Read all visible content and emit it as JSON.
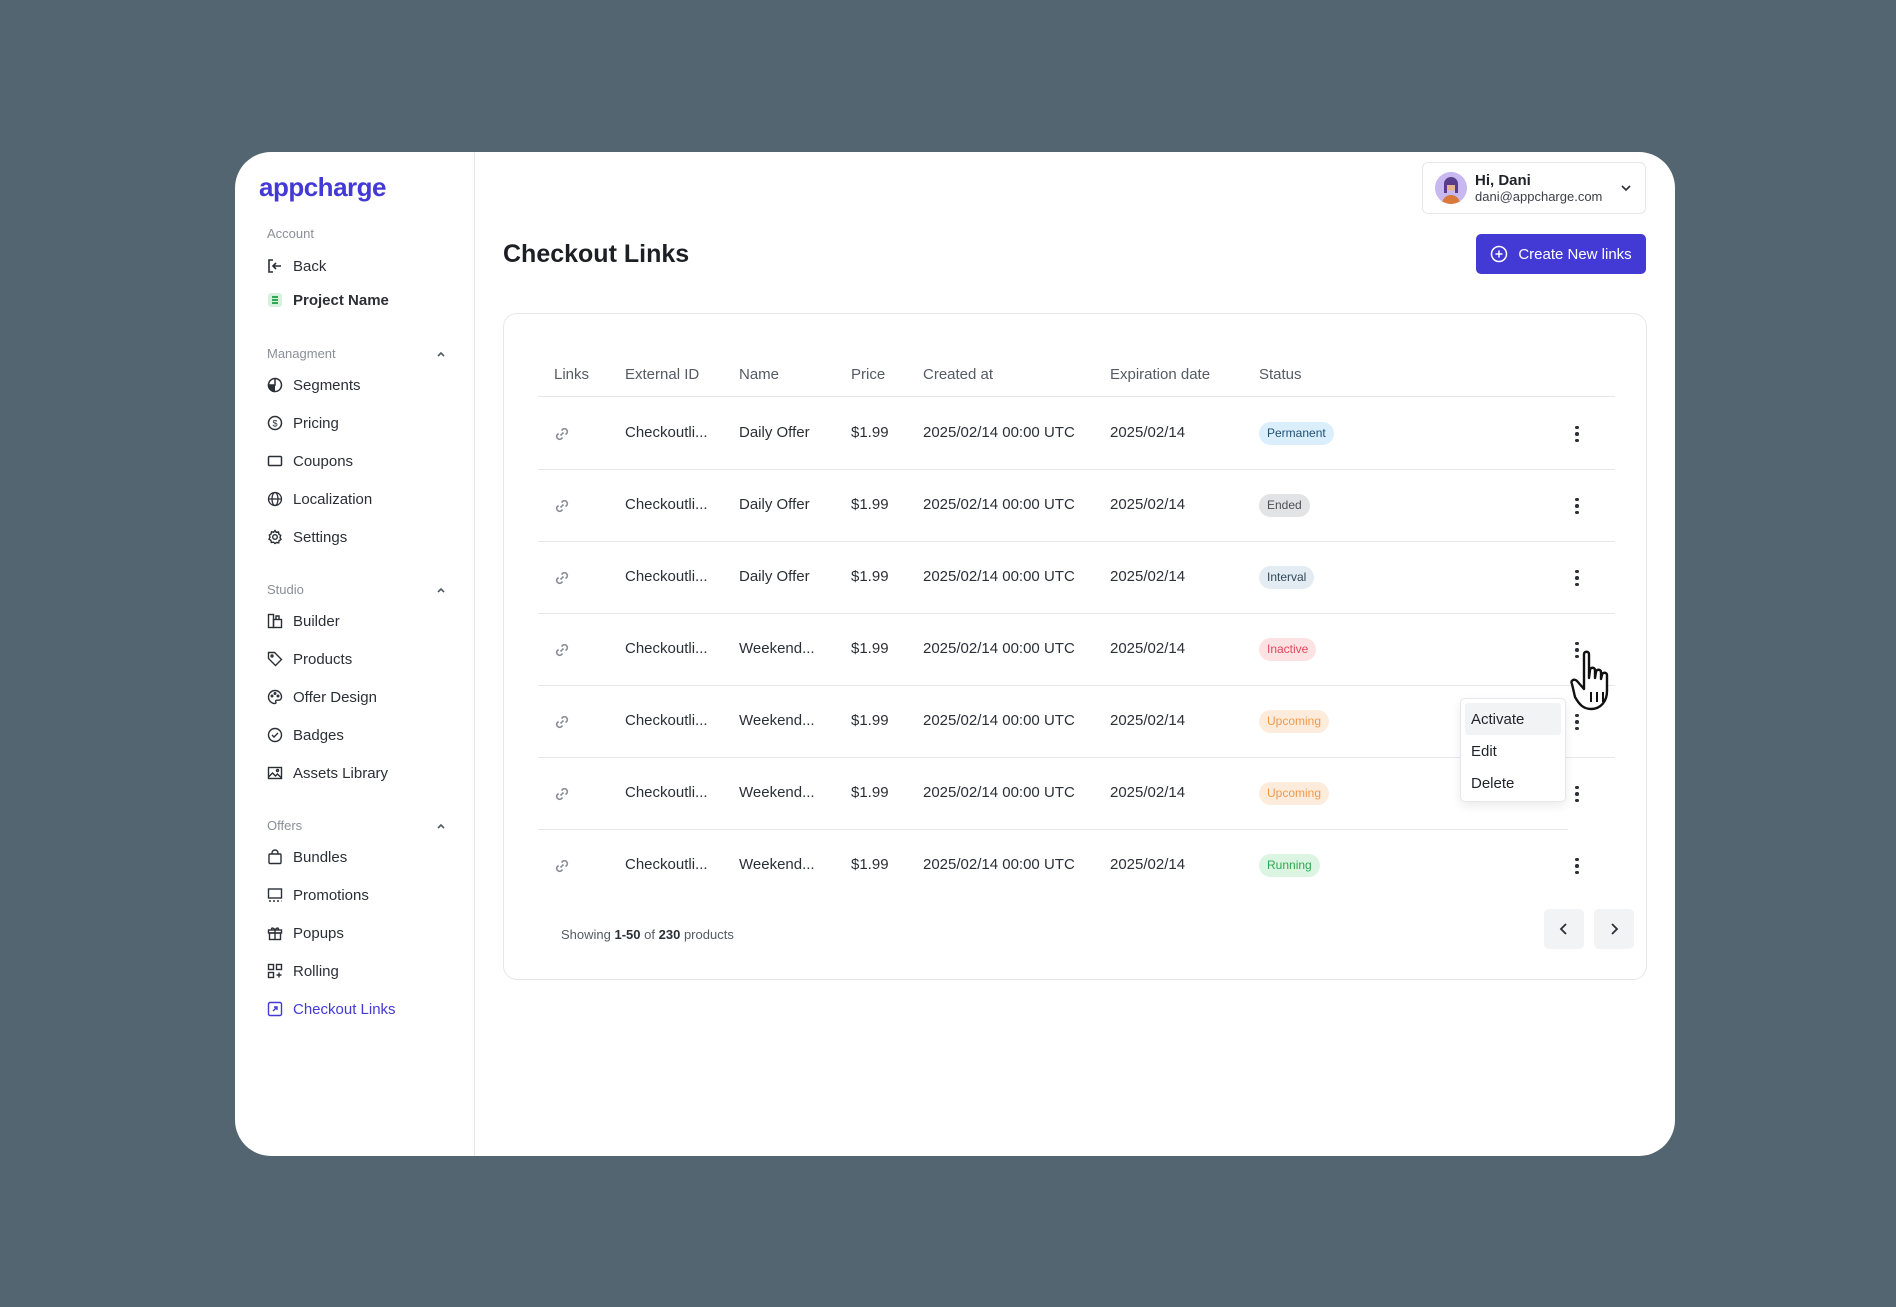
{
  "brand": {
    "logo": "appcharge",
    "accent": "#4339d4"
  },
  "sidebar": {
    "account_label": "Account",
    "account_items": [
      {
        "label": "Back",
        "icon": "back-icon"
      },
      {
        "label": "Project Name",
        "icon": "project-icon"
      }
    ],
    "management_label": "Managment",
    "management_items": [
      {
        "label": "Segments",
        "icon": "segments-icon"
      },
      {
        "label": "Pricing",
        "icon": "pricing-icon"
      },
      {
        "label": "Coupons",
        "icon": "coupons-icon"
      },
      {
        "label": "Localization",
        "icon": "globe-icon"
      },
      {
        "label": "Settings",
        "icon": "gear-icon"
      }
    ],
    "studio_label": "Studio",
    "studio_items": [
      {
        "label": "Builder",
        "icon": "builder-icon"
      },
      {
        "label": "Products",
        "icon": "tag-icon"
      },
      {
        "label": "Offer Design",
        "icon": "palette-icon"
      },
      {
        "label": "Badges",
        "icon": "badge-icon"
      },
      {
        "label": "Assets Library",
        "icon": "image-icon"
      }
    ],
    "offers_label": "Offers",
    "offers_items": [
      {
        "label": "Bundles",
        "icon": "bag-icon"
      },
      {
        "label": "Promotions",
        "icon": "promotions-icon"
      },
      {
        "label": "Popups",
        "icon": "gift-icon"
      },
      {
        "label": "Rolling",
        "icon": "rolling-icon"
      },
      {
        "label": "Checkout Links",
        "icon": "checkout-links-icon",
        "active": true
      }
    ]
  },
  "user": {
    "greeting": "Hi, Dani",
    "email": "dani@appcharge.com"
  },
  "page": {
    "title": "Checkout Links",
    "create_button": "Create New links"
  },
  "table": {
    "columns": [
      "Links",
      "External ID",
      "Name",
      "Price",
      "Created at",
      "Expiration date",
      "Status"
    ],
    "rows": [
      {
        "external_id": "Checkoutli...",
        "name": "Daily Offer",
        "price": "$1.99",
        "created_at": "2025/02/14 00:00 UTC",
        "expiration": "2025/02/14",
        "status": "Permanent"
      },
      {
        "external_id": "Checkoutli...",
        "name": "Daily Offer",
        "price": "$1.99",
        "created_at": "2025/02/14 00:00 UTC",
        "expiration": "2025/02/14",
        "status": "Ended"
      },
      {
        "external_id": "Checkoutli...",
        "name": "Daily Offer",
        "price": "$1.99",
        "created_at": "2025/02/14 00:00 UTC",
        "expiration": "2025/02/14",
        "status": "Interval"
      },
      {
        "external_id": "Checkoutli...",
        "name": "Weekend...",
        "price": "$1.99",
        "created_at": "2025/02/14 00:00 UTC",
        "expiration": "2025/02/14",
        "status": "Inactive"
      },
      {
        "external_id": "Checkoutli...",
        "name": "Weekend...",
        "price": "$1.99",
        "created_at": "2025/02/14 00:00 UTC",
        "expiration": "2025/02/14",
        "status": "Upcoming"
      },
      {
        "external_id": "Checkoutli...",
        "name": "Weekend...",
        "price": "$1.99",
        "created_at": "2025/02/14 00:00 UTC",
        "expiration": "2025/02/14",
        "status": "Upcoming"
      },
      {
        "external_id": "Checkoutli...",
        "name": "Weekend...",
        "price": "$1.99",
        "created_at": "2025/02/14 00:00 UTC",
        "expiration": "2025/02/14",
        "status": "Running"
      }
    ],
    "status_colors": {
      "Permanent": {
        "bg": "#dbeefb",
        "fg": "#1f4f74"
      },
      "Ended": {
        "bg": "#e2e3e5",
        "fg": "#4b4f55"
      },
      "Interval": {
        "bg": "#e3ecf2",
        "fg": "#2f4858"
      },
      "Inactive": {
        "bg": "#fde2e4",
        "fg": "#e0465a"
      },
      "Upcoming": {
        "bg": "#fdecdc",
        "fg": "#f2994a"
      },
      "Running": {
        "bg": "#dcf5e3",
        "fg": "#2fa653"
      }
    }
  },
  "pagination": {
    "prefix": "Showing",
    "range": "1-50",
    "of": "of",
    "total": "230",
    "suffix": "products"
  },
  "context_menu": {
    "items": [
      "Activate",
      "Edit",
      "Delete"
    ]
  }
}
